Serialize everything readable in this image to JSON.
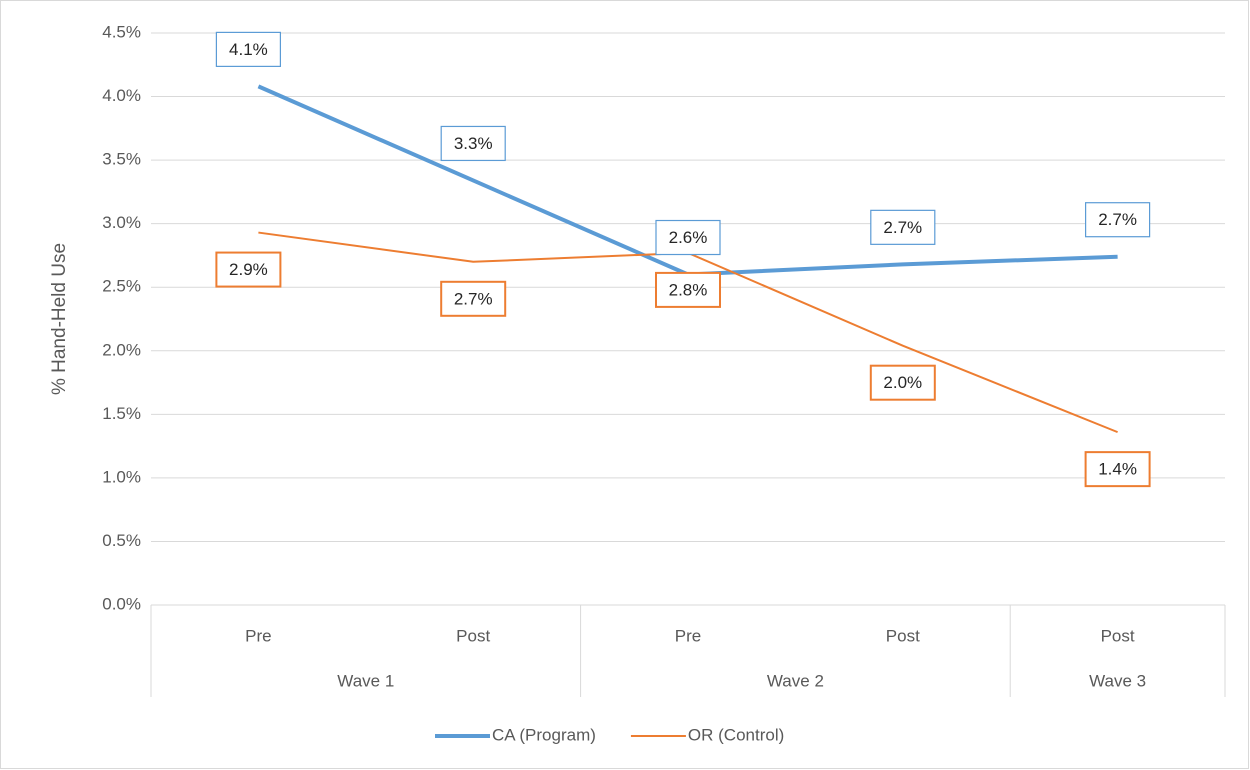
{
  "chart_data": {
    "type": "line",
    "y_label": "% Hand-Held Use",
    "categories": [
      "Pre",
      "Post",
      "Pre",
      "Post",
      "Post"
    ],
    "groups": [
      {
        "name": "Wave 1",
        "count": 2
      },
      {
        "name": "Wave 2",
        "count": 2
      },
      {
        "name": "Wave 3",
        "count": 1
      }
    ],
    "ylim": [
      0,
      4.5
    ],
    "yticks": [
      {
        "value": 0,
        "label": "0.0%"
      },
      {
        "value": 0.5,
        "label": "0.5%"
      },
      {
        "value": 1,
        "label": "1.0%"
      },
      {
        "value": 1.5,
        "label": "1.5%"
      },
      {
        "value": 2,
        "label": "2.0%"
      },
      {
        "value": 2.5,
        "label": "2.5%"
      },
      {
        "value": 3,
        "label": "3.0%"
      },
      {
        "value": 3.5,
        "label": "3.5%"
      },
      {
        "value": 4,
        "label": "4.0%"
      },
      {
        "value": 4.5,
        "label": "4.5%"
      }
    ],
    "grid": true,
    "legend": "bottom",
    "series": [
      {
        "name": "CA (Program)",
        "color": "#5b9bd5",
        "width": 4,
        "label_side": "above",
        "values": [
          4.08,
          3.34,
          2.6,
          2.68,
          2.74
        ],
        "value_labels": [
          "4.1%",
          "3.3%",
          "2.6%",
          "2.7%",
          "2.7%"
        ]
      },
      {
        "name": "OR (Control)",
        "color": "#ed7d31",
        "width": 2,
        "label_side": "below",
        "values": [
          2.93,
          2.7,
          2.77,
          2.04,
          1.36
        ],
        "value_labels": [
          "2.9%",
          "2.7%",
          "2.8%",
          "2.0%",
          "1.4%"
        ]
      }
    ]
  }
}
